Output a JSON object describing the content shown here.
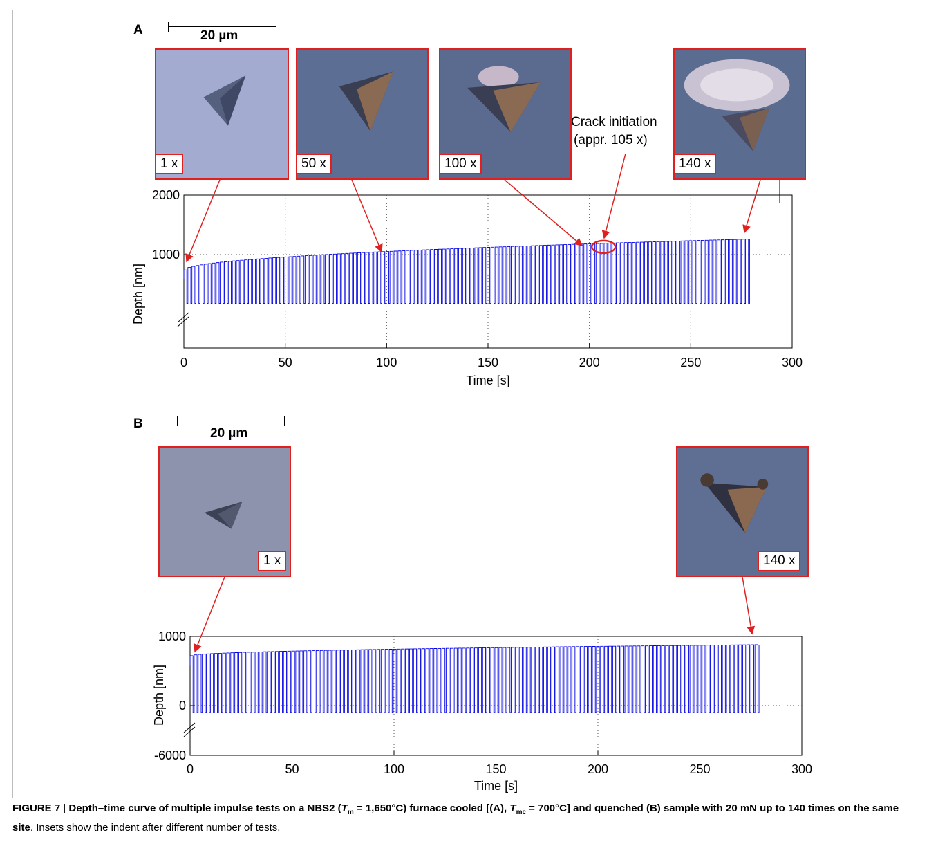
{
  "panelA": {
    "letter": "A",
    "scale_label": "20 µm",
    "insets": [
      {
        "label": "1 x"
      },
      {
        "label": "50 x"
      },
      {
        "label": "100 x"
      },
      {
        "label": "140 x"
      }
    ],
    "annotation_line1": "Crack initiation",
    "annotation_line2": "(appr. 105 x)"
  },
  "panelB": {
    "letter": "B",
    "scale_label": "20 µm",
    "insets": [
      {
        "label": "1 x"
      },
      {
        "label": "140 x"
      }
    ]
  },
  "caption": {
    "figure_label": "FIGURE 7",
    "separator": " | ",
    "bold_a": "Depth–time curve of multiple impulse tests on a NBS2 (",
    "t1": "T",
    "s1": "m",
    "bold_b": " = 1,650°C) furnace cooled [(A), ",
    "t2": "T",
    "s2": "mc",
    "bold_c": " = 700°C] and quenched (B) sample with 20 mN up to 140 times on the same site",
    "rest": ". Insets show the indent after different number of tests."
  },
  "chart_data": [
    {
      "type": "line",
      "panel": "A",
      "xlabel": "Time [s]",
      "ylabel": "Depth [nm]",
      "xlim": [
        0,
        300
      ],
      "xticks": [
        0,
        50,
        100,
        150,
        200,
        250,
        300
      ],
      "yticks": [
        1000,
        2000
      ],
      "ytick_labels": [
        "1000",
        "2000"
      ],
      "grid": true,
      "series_color": "#0000e6",
      "cycles": 140,
      "time_range": [
        0,
        279
      ],
      "baseline_depth": 180,
      "peak_depth_start": 740,
      "peak_depth_end": 1260,
      "highlight": {
        "label": "Crack initiation (appr. 105 x)",
        "time": 207,
        "depth": 1130
      }
    },
    {
      "type": "line",
      "panel": "B",
      "xlabel": "Time [s]",
      "ylabel": "Depth [nm]",
      "xlim": [
        0,
        300
      ],
      "xticks": [
        0,
        50,
        100,
        150,
        200,
        250,
        300
      ],
      "yticks": [
        -6000,
        0,
        1000
      ],
      "ytick_labels": [
        "-6000",
        "0",
        "1000"
      ],
      "grid": true,
      "series_color": "#0000e6",
      "cycles": 140,
      "time_range": [
        0,
        279
      ],
      "baseline_depth": -100,
      "peak_depth_start": 720,
      "peak_depth_end": 880
    }
  ]
}
